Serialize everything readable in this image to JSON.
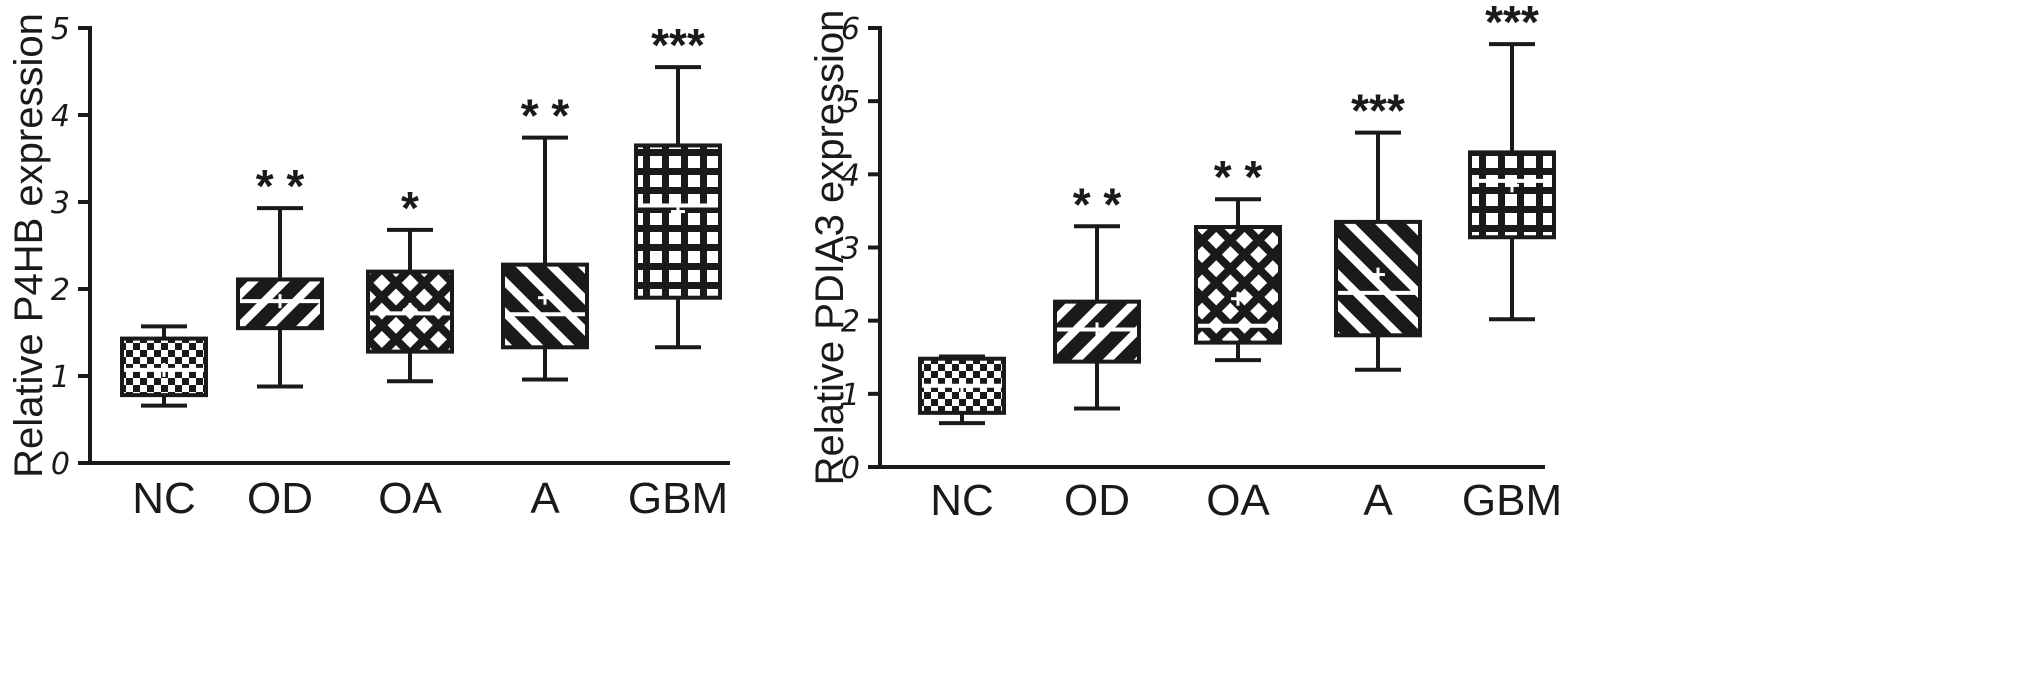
{
  "colors": {
    "ink": "#1a1a1a",
    "paper": "#ffffff"
  },
  "chart_data": [
    {
      "type": "box",
      "title": "",
      "xlabel": "",
      "ylabel": "Relative P4HB expression",
      "ylim": [
        0,
        5
      ],
      "yticks": [
        "0",
        "1",
        "2",
        "3",
        "4",
        "5"
      ],
      "categories": [
        "NC",
        "OD",
        "OA",
        "A",
        "GBM"
      ],
      "patterns": [
        "checker",
        "diagonal-down",
        "crosshatch",
        "diagonal-up",
        "grid"
      ],
      "boxes": [
        {
          "min": 0.66,
          "q1": 0.78,
          "median": 1.07,
          "mean": 1.07,
          "q3": 1.43,
          "max": 1.57,
          "sig": ""
        },
        {
          "min": 0.88,
          "q1": 1.55,
          "median": 1.86,
          "mean": 1.86,
          "q3": 2.11,
          "max": 2.93,
          "sig": "* *"
        },
        {
          "min": 0.94,
          "q1": 1.28,
          "median": 1.72,
          "mean": 1.76,
          "q3": 2.2,
          "max": 2.68,
          "sig": "*"
        },
        {
          "min": 0.96,
          "q1": 1.33,
          "median": 1.71,
          "mean": 1.9,
          "q3": 2.28,
          "max": 3.74,
          "sig": "* *"
        },
        {
          "min": 1.33,
          "q1": 1.9,
          "median": 2.96,
          "mean": 2.89,
          "q3": 3.65,
          "max": 4.55,
          "sig": "***"
        }
      ]
    },
    {
      "type": "box",
      "title": "",
      "xlabel": "",
      "ylabel": "Relative PDIA3 expression",
      "ylim": [
        0,
        6
      ],
      "yticks": [
        "0",
        "1",
        "2",
        "3",
        "4",
        "5",
        "6"
      ],
      "categories": [
        "NC",
        "OD",
        "OA",
        "A",
        "GBM"
      ],
      "patterns": [
        "checker",
        "diagonal-down",
        "crosshatch",
        "diagonal-up",
        "grid"
      ],
      "boxes": [
        {
          "min": 0.6,
          "q1": 0.74,
          "median": 1.11,
          "mean": 1.1,
          "q3": 1.48,
          "max": 1.51,
          "sig": ""
        },
        {
          "min": 0.8,
          "q1": 1.44,
          "median": 1.88,
          "mean": 1.88,
          "q3": 2.26,
          "max": 3.29,
          "sig": "* *"
        },
        {
          "min": 1.46,
          "q1": 1.7,
          "median": 1.93,
          "mean": 2.3,
          "q3": 3.28,
          "max": 3.66,
          "sig": "* *"
        },
        {
          "min": 1.33,
          "q1": 1.8,
          "median": 2.38,
          "mean": 2.63,
          "q3": 3.35,
          "max": 4.57,
          "sig": "***"
        },
        {
          "min": 2.02,
          "q1": 3.14,
          "median": 3.91,
          "mean": 3.85,
          "q3": 4.3,
          "max": 5.78,
          "sig": "***"
        }
      ]
    }
  ]
}
